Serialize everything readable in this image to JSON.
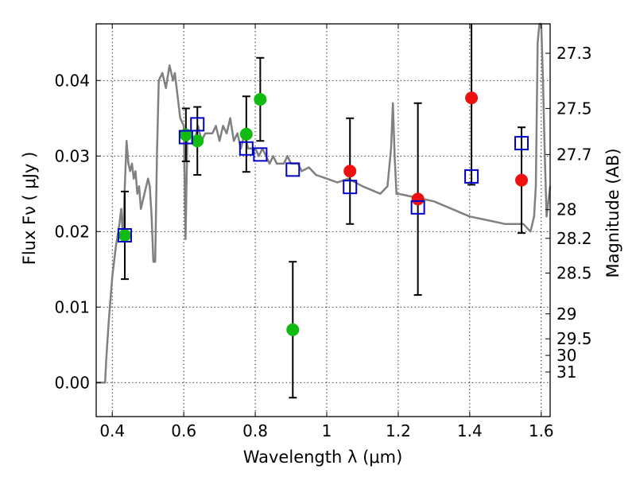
{
  "chart_data": {
    "type": "scatter",
    "xlabel": "Wavelength  λ (μm)",
    "ylabel": "Flux  Fν  ( μJy )",
    "y2label": "Magnitude (AB)",
    "xlim": [
      0.355,
      1.625
    ],
    "ylim": [
      -0.0045,
      0.0475
    ],
    "grid": true,
    "x_ticks": [
      0.4,
      0.6,
      0.8,
      1.0,
      1.2,
      1.4,
      1.6
    ],
    "x_tick_labels": [
      "0.4",
      "0.6",
      "0.8",
      "1",
      "1.2",
      "1.4",
      "1.6"
    ],
    "y_ticks": [
      0.0,
      0.01,
      0.02,
      0.03,
      0.04
    ],
    "y_tick_labels": [
      "0.00",
      "0.01",
      "0.02",
      "0.03",
      "0.04"
    ],
    "magnitude_ticks": [
      {
        "label": "27.3",
        "flux": 0.0436
      },
      {
        "label": "27.5",
        "flux": 0.0363
      },
      {
        "label": "27.7",
        "flux": 0.0302
      },
      {
        "label": "28",
        "flux": 0.0229
      },
      {
        "label": "28.2",
        "flux": 0.0191
      },
      {
        "label": "28.5",
        "flux": 0.0145
      },
      {
        "label": "29",
        "flux": 0.0091
      },
      {
        "label": "29.5",
        "flux": 0.0058
      },
      {
        "label": "30",
        "flux": 0.0036
      },
      {
        "label": "31",
        "flux": 0.0014
      }
    ],
    "colors": {
      "model": "#808080",
      "green_points": "#11bb11",
      "red_points": "#ee1111",
      "model_boxes": "#0000cc",
      "error_bars": "#000000"
    },
    "model_spectrum": {
      "x": [
        0.355,
        0.38,
        0.383,
        0.39,
        0.4,
        0.41,
        0.42,
        0.425,
        0.43,
        0.435,
        0.44,
        0.445,
        0.45,
        0.455,
        0.46,
        0.465,
        0.47,
        0.475,
        0.48,
        0.49,
        0.5,
        0.505,
        0.51,
        0.515,
        0.52,
        0.525,
        0.53,
        0.54,
        0.55,
        0.56,
        0.57,
        0.575,
        0.58,
        0.59,
        0.6,
        0.605,
        0.61,
        0.62,
        0.63,
        0.64,
        0.65,
        0.66,
        0.67,
        0.68,
        0.69,
        0.7,
        0.71,
        0.72,
        0.73,
        0.74,
        0.75,
        0.76,
        0.77,
        0.78,
        0.79,
        0.8,
        0.81,
        0.82,
        0.83,
        0.84,
        0.85,
        0.86,
        0.87,
        0.88,
        0.89,
        0.9,
        0.91,
        0.92,
        0.93,
        0.95,
        0.97,
        1.0,
        1.03,
        1.06,
        1.1,
        1.15,
        1.17,
        1.18,
        1.185,
        1.19,
        1.195,
        1.2,
        1.25,
        1.3,
        1.35,
        1.4,
        1.45,
        1.5,
        1.55,
        1.57,
        1.58,
        1.585,
        1.59,
        1.595,
        1.6,
        1.605,
        1.61,
        1.615,
        1.62,
        1.625
      ],
      "y": [
        0.0,
        0.0,
        0.003,
        0.008,
        0.014,
        0.018,
        0.021,
        0.023,
        0.019,
        0.026,
        0.032,
        0.029,
        0.028,
        0.029,
        0.027,
        0.028,
        0.025,
        0.026,
        0.023,
        0.025,
        0.027,
        0.026,
        0.022,
        0.016,
        0.016,
        0.03,
        0.04,
        0.041,
        0.039,
        0.042,
        0.04,
        0.041,
        0.039,
        0.035,
        0.034,
        0.019,
        0.032,
        0.033,
        0.032,
        0.034,
        0.032,
        0.033,
        0.033,
        0.033,
        0.034,
        0.032,
        0.034,
        0.033,
        0.035,
        0.032,
        0.033,
        0.031,
        0.033,
        0.031,
        0.031,
        0.031,
        0.03,
        0.031,
        0.03,
        0.029,
        0.03,
        0.029,
        0.029,
        0.029,
        0.03,
        0.029,
        0.029,
        0.029,
        0.028,
        0.0285,
        0.0275,
        0.027,
        0.0265,
        0.027,
        0.026,
        0.025,
        0.026,
        0.031,
        0.037,
        0.03,
        0.025,
        0.025,
        0.0245,
        0.024,
        0.023,
        0.022,
        0.0215,
        0.021,
        0.021,
        0.02,
        0.022,
        0.026,
        0.045,
        0.05,
        0.05,
        0.04,
        0.03,
        0.022,
        0.024,
        0.026
      ]
    },
    "green_points": [
      {
        "x": 0.435,
        "y": 0.0195,
        "err": 0.0058
      },
      {
        "x": 0.606,
        "y": 0.0328,
        "err": 0.0035
      },
      {
        "x": 0.638,
        "y": 0.032,
        "err": 0.0045
      },
      {
        "x": 0.775,
        "y": 0.0329,
        "err": 0.005
      },
      {
        "x": 0.814,
        "y": 0.0375,
        "err": 0.0055
      },
      {
        "x": 0.905,
        "y": 0.007,
        "err": 0.009
      }
    ],
    "red_points": [
      {
        "x": 1.065,
        "y": 0.028,
        "err": 0.007
      },
      {
        "x": 1.255,
        "y": 0.0243,
        "err": 0.0127
      },
      {
        "x": 1.405,
        "y": 0.0377,
        "err": 0.0115
      },
      {
        "x": 1.545,
        "y": 0.0268,
        "err": 0.007
      }
    ],
    "model_boxes": [
      {
        "x": 0.435,
        "y": 0.0195
      },
      {
        "x": 0.606,
        "y": 0.0325
      },
      {
        "x": 0.638,
        "y": 0.0342
      },
      {
        "x": 0.775,
        "y": 0.031
      },
      {
        "x": 0.814,
        "y": 0.0302
      },
      {
        "x": 0.905,
        "y": 0.0282
      },
      {
        "x": 1.065,
        "y": 0.0259
      },
      {
        "x": 1.255,
        "y": 0.0232
      },
      {
        "x": 1.405,
        "y": 0.0273
      },
      {
        "x": 1.545,
        "y": 0.0317
      }
    ]
  }
}
